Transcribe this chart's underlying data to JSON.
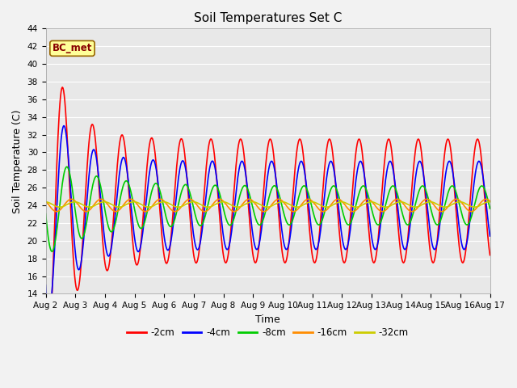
{
  "title": "Soil Temperatures Set C",
  "xlabel": "Time",
  "ylabel": "Soil Temperature (C)",
  "ylim": [
    14,
    44
  ],
  "yticks": [
    14,
    16,
    18,
    20,
    22,
    24,
    26,
    28,
    30,
    32,
    34,
    36,
    38,
    40,
    42,
    44
  ],
  "x_tick_labels": [
    "Aug 2",
    "Aug 3",
    "Aug 4",
    "Aug 5",
    "Aug 6",
    "Aug 7",
    "Aug 8",
    "Aug 9",
    "Aug 10",
    "Aug 11",
    "Aug 12",
    "Aug 13",
    "Aug 14",
    "Aug 15",
    "Aug 16",
    "Aug 17"
  ],
  "label_box_text": "BC_met",
  "label_box_facecolor": "#FFFF99",
  "label_box_edgecolor": "#996600",
  "label_box_textcolor": "#880000",
  "plot_bg_color": "#E8E8E8",
  "fig_bg_color": "#F2F2F2",
  "series_colors": {
    "-2cm": "#FF0000",
    "-4cm": "#0000FF",
    "-8cm": "#00CC00",
    "-16cm": "#FF8C00",
    "-32cm": "#CCCC00"
  },
  "legend_order": [
    "-2cm",
    "-4cm",
    "-8cm",
    "-16cm",
    "-32cm"
  ],
  "linewidth": 1.2,
  "n_pts": 720
}
